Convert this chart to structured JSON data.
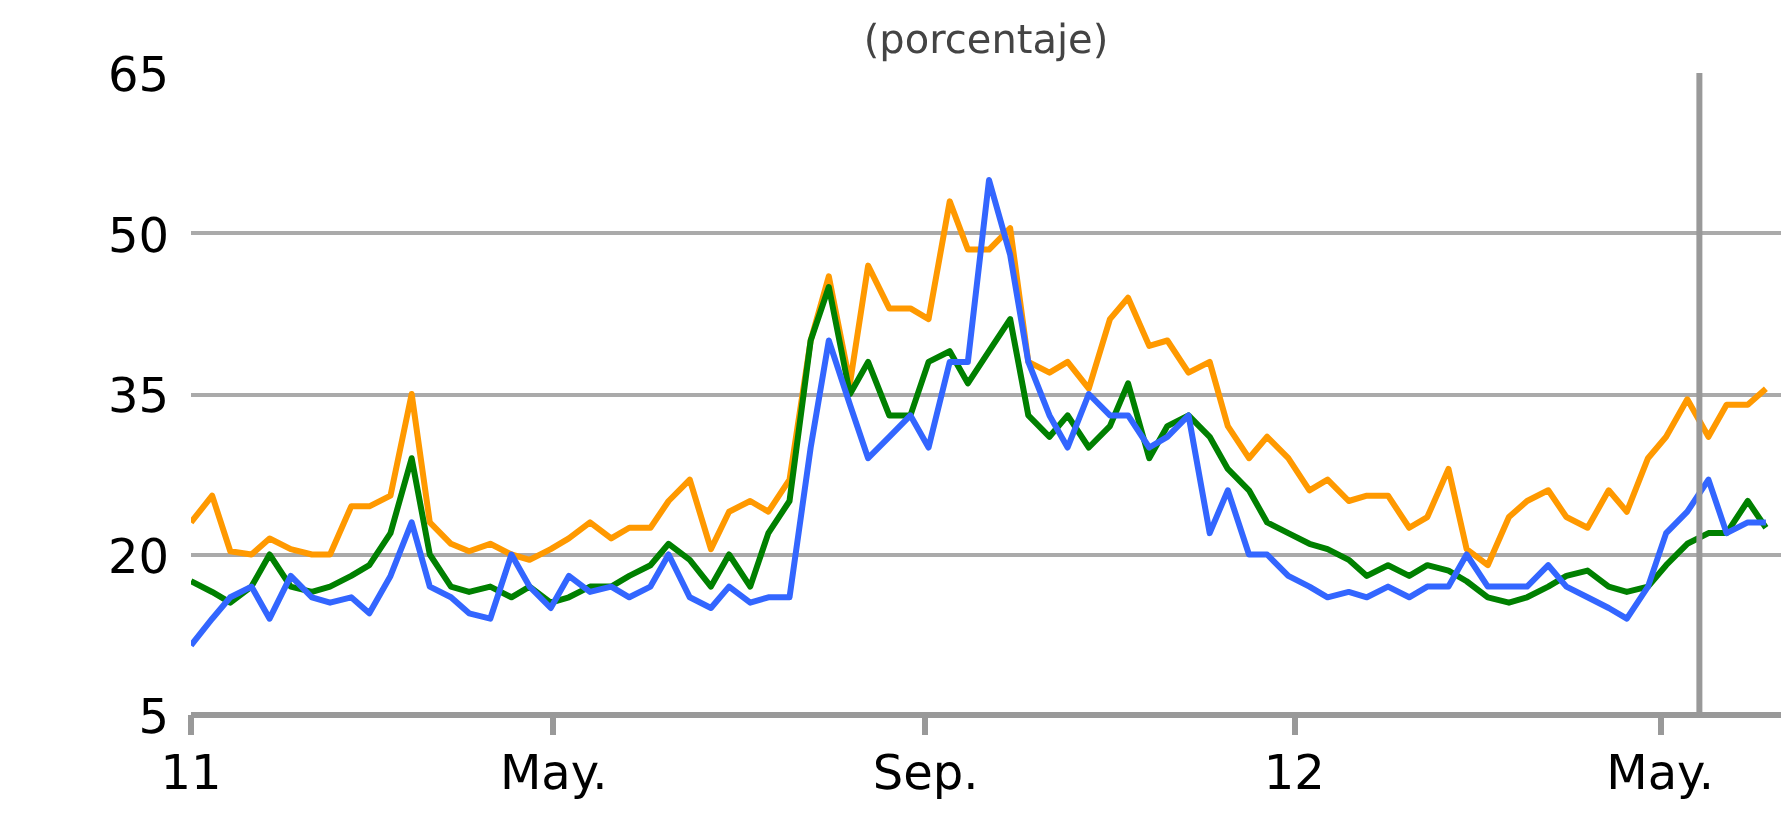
{
  "chart_data": {
    "type": "line",
    "title": "(porcentaje)",
    "x": [
      "2011-01-01",
      "2011-01-08",
      "2011-01-14",
      "2011-01-21",
      "2011-01-27",
      "2011-02-03",
      "2011-02-10",
      "2011-02-16",
      "2011-02-23",
      "2011-03-01",
      "2011-03-08",
      "2011-03-15",
      "2011-03-21",
      "2011-03-28",
      "2011-04-03",
      "2011-04-10",
      "2011-04-17",
      "2011-04-23",
      "2011-04-30",
      "2011-05-06",
      "2011-05-13",
      "2011-05-20",
      "2011-05-26",
      "2011-06-02",
      "2011-06-08",
      "2011-06-15",
      "2011-06-22",
      "2011-06-28",
      "2011-07-05",
      "2011-07-11",
      "2011-07-18",
      "2011-07-25",
      "2011-07-31",
      "2011-08-07",
      "2011-08-13",
      "2011-08-20",
      "2011-08-27",
      "2011-09-02",
      "2011-09-09",
      "2011-09-15",
      "2011-09-22",
      "2011-09-29",
      "2011-10-05",
      "2011-10-12",
      "2011-10-18",
      "2011-10-25",
      "2011-11-01",
      "2011-11-07",
      "2011-11-14",
      "2011-11-20",
      "2011-11-27",
      "2011-12-04",
      "2011-12-10",
      "2011-12-17",
      "2011-12-23",
      "2011-12-30",
      "2012-01-06",
      "2012-01-12",
      "2012-01-19",
      "2012-01-25",
      "2012-02-01",
      "2012-02-08",
      "2012-02-14",
      "2012-02-21",
      "2012-02-27",
      "2012-03-05",
      "2012-03-12",
      "2012-03-18",
      "2012-03-25",
      "2012-03-31",
      "2012-04-07",
      "2012-04-14",
      "2012-04-20",
      "2012-04-27",
      "2012-05-03",
      "2012-05-10",
      "2012-05-17",
      "2012-05-23",
      "2012-05-30",
      "2012-06-05"
    ],
    "series": [
      {
        "color": "#ff9900",
        "values": [
          23,
          25.5,
          20.3,
          20,
          21.5,
          20.5,
          20,
          20,
          24.5,
          24.5,
          25.5,
          35,
          23,
          21,
          20.3,
          21,
          20,
          19.5,
          20.5,
          21.5,
          23,
          21.5,
          22.5,
          22.5,
          25,
          27,
          20.5,
          24,
          25,
          24,
          27,
          40,
          46,
          36,
          47,
          43,
          43,
          42,
          53,
          48.5,
          48.5,
          50.5,
          38,
          37,
          38,
          35.5,
          42,
          44,
          39.5,
          40,
          37,
          38,
          32,
          29,
          31,
          29,
          26,
          27,
          25,
          25.5,
          25.5,
          22.5,
          23.5,
          28,
          20.5,
          19,
          23.5,
          25,
          26,
          23.5,
          22.5,
          26,
          24,
          29,
          31,
          34.5,
          31,
          34,
          34,
          35.5
        ]
      },
      {
        "color": "#008000",
        "values": [
          17.5,
          16.5,
          15.5,
          17,
          20,
          17,
          16.5,
          17,
          18,
          19,
          22,
          29,
          20,
          17,
          16.5,
          17,
          16,
          17,
          15.5,
          16,
          17,
          17,
          18,
          19,
          21,
          19.5,
          17,
          20,
          17,
          22,
          25,
          40,
          45,
          35,
          38,
          33,
          33,
          38,
          39,
          36,
          39,
          42,
          33,
          31,
          33,
          30,
          32,
          36,
          29,
          32,
          33,
          31,
          28,
          26,
          23,
          22,
          21,
          20.5,
          19.5,
          18,
          19,
          18,
          19,
          18.5,
          17.5,
          16,
          15.5,
          16,
          17,
          18,
          18.5,
          17,
          16.5,
          17,
          19,
          21,
          22,
          22,
          25,
          22.5
        ]
      },
      {
        "color": "#3366ff",
        "values": [
          11.5,
          14,
          16,
          17,
          14,
          18,
          16,
          15.5,
          16,
          14.5,
          18,
          23,
          17,
          16,
          14.5,
          14,
          20,
          17,
          15,
          18,
          16.5,
          17,
          16,
          17,
          20,
          16,
          15,
          17,
          15.5,
          16,
          16,
          30,
          40,
          34,
          29,
          31,
          33,
          30,
          38,
          38,
          55,
          48,
          38,
          33,
          30,
          35,
          33,
          33,
          30,
          31,
          33,
          22,
          26,
          20,
          20,
          18,
          17,
          16,
          16.5,
          16,
          17,
          16,
          17,
          17,
          20,
          17,
          17,
          17,
          19,
          17,
          16,
          15,
          14,
          17,
          22,
          24,
          27,
          22,
          23,
          23
        ]
      }
    ],
    "xlim": [
      "2011-01-01",
      "2012-06-10"
    ],
    "ylim": [
      5,
      65
    ],
    "xticks": [
      {
        "value": "2011-01-01",
        "label": "11"
      },
      {
        "value": "2011-05-01",
        "label": "May."
      },
      {
        "value": "2011-09-01",
        "label": "Sep."
      },
      {
        "value": "2012-01-01",
        "label": "12"
      },
      {
        "value": "2012-05-01",
        "label": "May."
      }
    ],
    "yticks": [
      5,
      20,
      35,
      50,
      65
    ],
    "grid": "y",
    "ref_lines": [
      {
        "axis": "x",
        "value": "2012-05-14",
        "color": "#999999"
      }
    ],
    "line_style": "solid",
    "marker": "none"
  }
}
